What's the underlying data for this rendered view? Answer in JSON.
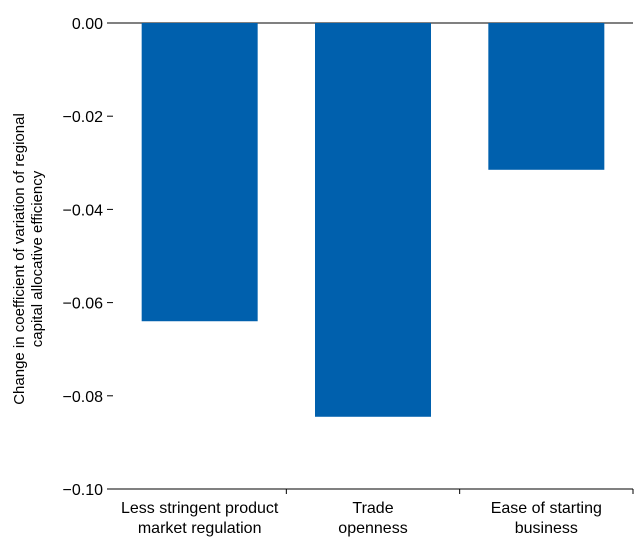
{
  "chart_data": {
    "type": "bar",
    "categories": [
      [
        "Less stringent product",
        "market regulation"
      ],
      [
        "Trade",
        "openness"
      ],
      [
        "Ease of starting",
        "business"
      ]
    ],
    "values": [
      -0.064,
      -0.0845,
      -0.0315
    ],
    "ylabel": [
      "Change in coefficient of variation of regional",
      "capital allocative efficiency"
    ],
    "ylim": [
      -0.1,
      0.0
    ],
    "yticks": [
      0.0,
      -0.02,
      -0.04,
      -0.06,
      -0.08,
      -0.1
    ],
    "ytick_labels": [
      "0.00",
      "−0.02",
      "−0.04",
      "−0.06",
      "−0.08",
      "−0.10"
    ],
    "bar_color": "#0060ad",
    "grid": false
  }
}
